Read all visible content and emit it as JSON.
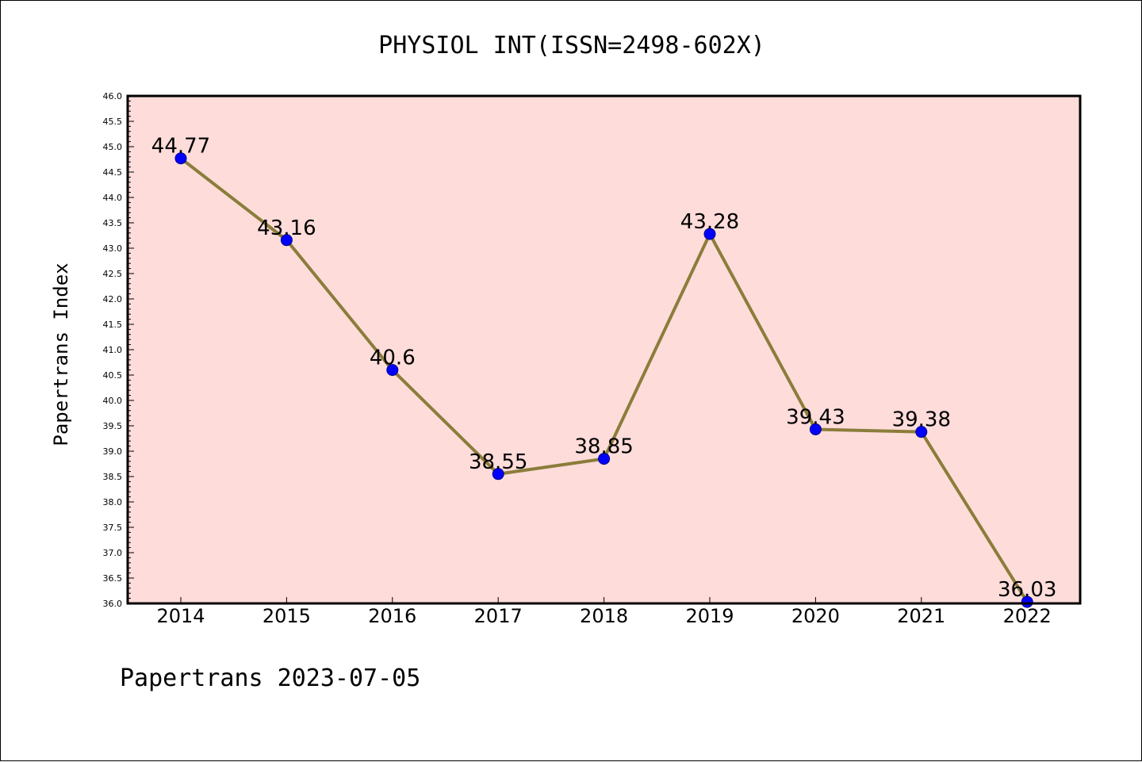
{
  "chart_data": {
    "type": "line",
    "title": "PHYSIOL INT(ISSN=2498-602X)",
    "ylabel": "Papertrans Index",
    "xlabel": "",
    "categories": [
      "2014",
      "2015",
      "2016",
      "2017",
      "2018",
      "2019",
      "2020",
      "2021",
      "2022"
    ],
    "series": [
      {
        "values": [
          44.77,
          43.16,
          40.6,
          38.55,
          38.85,
          43.28,
          39.43,
          39.38,
          36.03
        ],
        "labels": [
          "44.77",
          "43.16",
          "40.6",
          "38.55",
          "38.85",
          "43.28",
          "39.43",
          "39.38",
          "36.03"
        ]
      }
    ],
    "ylim": [
      36.0,
      46.0
    ],
    "yticks": [
      "36.0",
      "36.5",
      "37.0",
      "37.5",
      "38.0",
      "38.5",
      "39.0",
      "39.5",
      "40.0",
      "40.5",
      "41.0",
      "41.5",
      "42.0",
      "42.5",
      "43.0",
      "43.5",
      "44.0",
      "44.5",
      "45.0",
      "45.5",
      "46.0"
    ],
    "grid": false,
    "colors": {
      "plot_background": "#fddcda",
      "line": "#8b7d3a",
      "marker": "#0000ff",
      "marker_edge": "#00008b"
    }
  },
  "footer": {
    "text": "Papertrans 2023-07-05"
  }
}
